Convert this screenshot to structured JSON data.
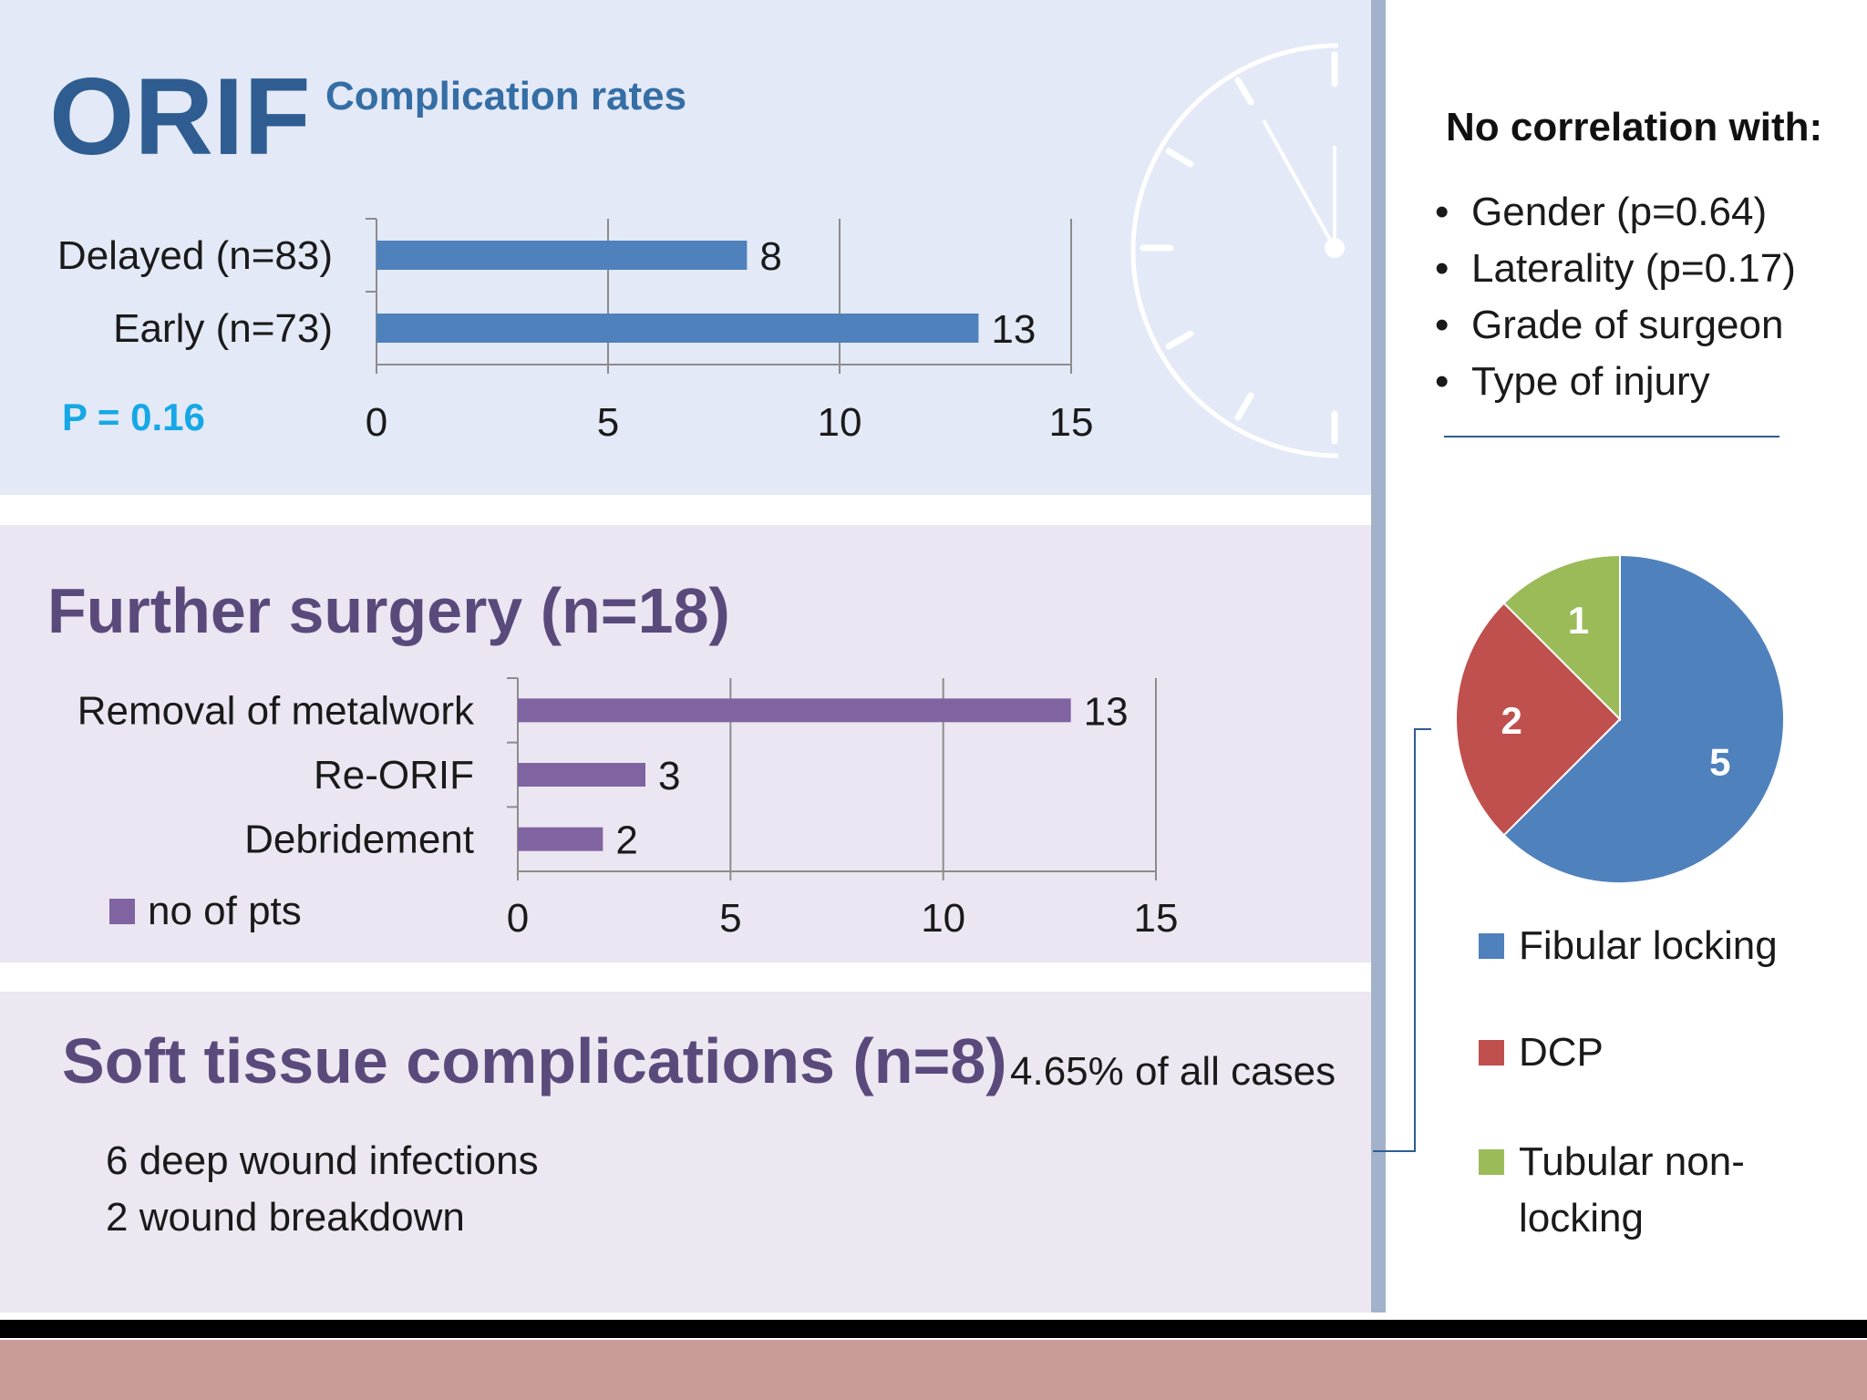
{
  "section1": {
    "title": "ORIF",
    "subtitle": "Complication rates",
    "p_value": "P = 0.16",
    "right_heading": "No correlation with:",
    "bullets": [
      "Gender (p=0.64)",
      "Laterality  (p=0.17)",
      "Grade of surgeon",
      "Type of injury"
    ]
  },
  "section2": {
    "title": "Further surgery (n=18)",
    "legend_label": "no of pts"
  },
  "section3": {
    "title": "Soft tissue complications (n=8)",
    "note": "4.65% of all cases",
    "lines": [
      "6 deep wound infections",
      "2 wound breakdown"
    ]
  },
  "colors": {
    "title_blue": "#2f5d91",
    "subtitle_blue": "#356ea5",
    "p_value_cyan": "#16a8e6",
    "bar_blue": "#4f81bd",
    "bar_purple": "#8064a2",
    "title_purple": "#5a4a7c",
    "pie_red": "#c0504d",
    "pie_green": "#9bbb59"
  },
  "chart_data": [
    {
      "type": "bar",
      "orientation": "horizontal",
      "categories": [
        "Delayed (n=83)",
        "Early (n=73)"
      ],
      "values": [
        8,
        13
      ],
      "xlim": [
        0,
        15
      ],
      "xticks": [
        0,
        5,
        10,
        15
      ],
      "grid": true,
      "color": "#4f81bd"
    },
    {
      "type": "bar",
      "orientation": "horizontal",
      "categories": [
        "Removal of metalwork",
        "Re-ORIF",
        "Debridement"
      ],
      "series": [
        {
          "name": "no of pts",
          "values": [
            13,
            3,
            2
          ]
        }
      ],
      "xlim": [
        0,
        15
      ],
      "xticks": [
        0,
        5,
        10,
        15
      ],
      "grid": true,
      "legend": "bottom-left",
      "color": "#8064a2"
    },
    {
      "type": "pie",
      "categories": [
        "Fibular locking",
        "DCP",
        "Tubular non-locking"
      ],
      "values": [
        5,
        2,
        1
      ],
      "colors": [
        "#4f81bd",
        "#c0504d",
        "#9bbb59"
      ],
      "legend": "bottom"
    }
  ]
}
